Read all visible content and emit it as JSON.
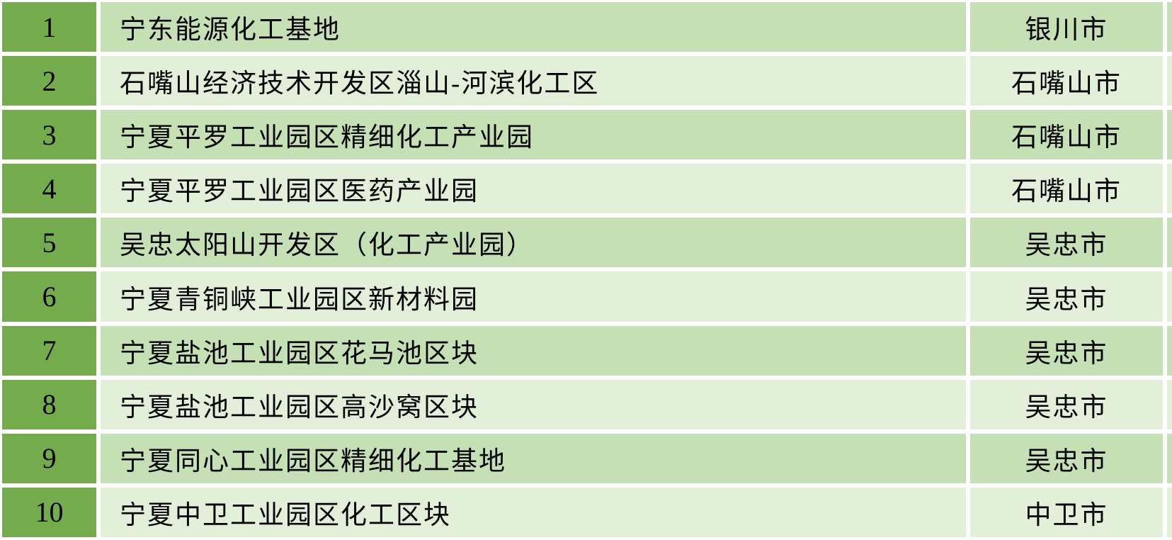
{
  "table": {
    "rows": [
      {
        "num": "1",
        "name": "宁东能源化工基地",
        "city": "银川市"
      },
      {
        "num": "2",
        "name": "石嘴山经济技术开发区淄山-河滨化工区",
        "city": "石嘴山市"
      },
      {
        "num": "3",
        "name": "宁夏平罗工业园区精细化工产业园",
        "city": "石嘴山市"
      },
      {
        "num": "4",
        "name": "宁夏平罗工业园区医药产业园",
        "city": "石嘴山市"
      },
      {
        "num": "5",
        "name": "吴忠太阳山开发区（化工产业园）",
        "city": "吴忠市"
      },
      {
        "num": "6",
        "name": "宁夏青铜峡工业园区新材料园",
        "city": "吴忠市"
      },
      {
        "num": "7",
        "name": "宁夏盐池工业园区花马池区块",
        "city": "吴忠市"
      },
      {
        "num": "8",
        "name": "宁夏盐池工业园区高沙窝区块",
        "city": "吴忠市"
      },
      {
        "num": "9",
        "name": "宁夏同心工业园区精细化工基地",
        "city": "吴忠市"
      },
      {
        "num": "10",
        "name": "宁夏中卫工业园区化工区块",
        "city": "中卫市"
      }
    ]
  },
  "colors": {
    "index_column": "#74ac4d",
    "band_dark": "#c5e0b4",
    "band_light": "#e2efd9",
    "gap": "#ffffff",
    "text": "#000000"
  }
}
